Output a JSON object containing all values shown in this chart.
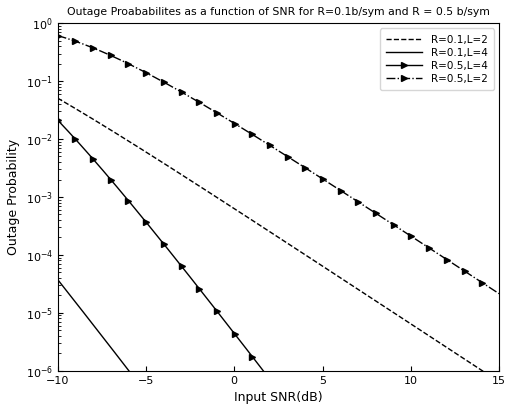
{
  "title": "Outage Proababilites as a function of SNR for R=0.1b/sym and R = 0.5 b/sym",
  "xlabel": "Input SNR(dB)",
  "ylabel": "Outage Probability",
  "snr_db_min": -10,
  "snr_db_max": 15,
  "ylim_min": 1e-06,
  "ylim_max": 1.0,
  "curves": [
    {
      "R": 0.1,
      "L": 2,
      "color": "black",
      "linestyle": "--",
      "marker": null,
      "markevery": null,
      "lw": 1.0,
      "label": "R=0.1,L=2"
    },
    {
      "R": 0.1,
      "L": 4,
      "color": "black",
      "linestyle": "-",
      "marker": null,
      "markevery": null,
      "lw": 1.0,
      "label": "R=0.1,L=4"
    },
    {
      "R": 0.5,
      "L": 4,
      "color": "black",
      "linestyle": "-",
      "marker": ">",
      "markevery": 20,
      "lw": 1.0,
      "label": "R=0.5,L=4"
    },
    {
      "R": 0.5,
      "L": 2,
      "color": "black",
      "linestyle": "-.",
      "marker": ">",
      "markevery": 20,
      "lw": 1.0,
      "label": "R=0.5,L=2"
    }
  ]
}
